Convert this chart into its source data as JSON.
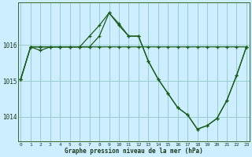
{
  "xlabel": "Graphe pression niveau de la mer (hPa)",
  "bg_color": "#cceeff",
  "grid_color": "#99cccc",
  "line_color": "#1a5c1a",
  "x_ticks": [
    0,
    1,
    2,
    3,
    4,
    5,
    6,
    7,
    8,
    9,
    10,
    11,
    12,
    13,
    14,
    15,
    16,
    17,
    18,
    19,
    20,
    21,
    22,
    23
  ],
  "y_ticks": [
    1014,
    1015,
    1016
  ],
  "ylim": [
    1013.3,
    1017.2
  ],
  "xlim": [
    -0.3,
    23.3
  ],
  "series": [
    [
      1015.05,
      1015.95,
      1015.95,
      1015.95,
      1015.95,
      1015.95,
      1015.95,
      1015.95,
      1015.95,
      1015.95,
      1015.95,
      1015.95,
      1015.95,
      1015.95,
      1015.95,
      1015.95,
      1015.95,
      1015.95,
      1015.95,
      1015.95,
      1015.95,
      1015.95,
      1015.95,
      1015.95
    ],
    [
      1015.05,
      1015.95,
      1015.85,
      1015.95,
      1015.95,
      1015.95,
      1015.95,
      1016.25,
      1016.55,
      1016.9,
      1016.55,
      1016.25,
      1016.25,
      1015.55,
      1015.05,
      1014.65,
      1014.25,
      1014.05,
      1013.65,
      1013.75,
      1013.95,
      1014.45,
      1015.15,
      1015.95
    ],
    [
      1015.05,
      1015.95,
      1015.95,
      1015.95,
      1015.95,
      1015.95,
      1015.95,
      1015.95,
      1016.25,
      1016.9,
      1016.6,
      1016.25,
      1016.25,
      1015.55,
      1015.05,
      1014.65,
      1014.25,
      1014.05,
      1013.65,
      1013.75,
      1013.95,
      1014.45,
      1015.15,
      1015.95
    ]
  ]
}
